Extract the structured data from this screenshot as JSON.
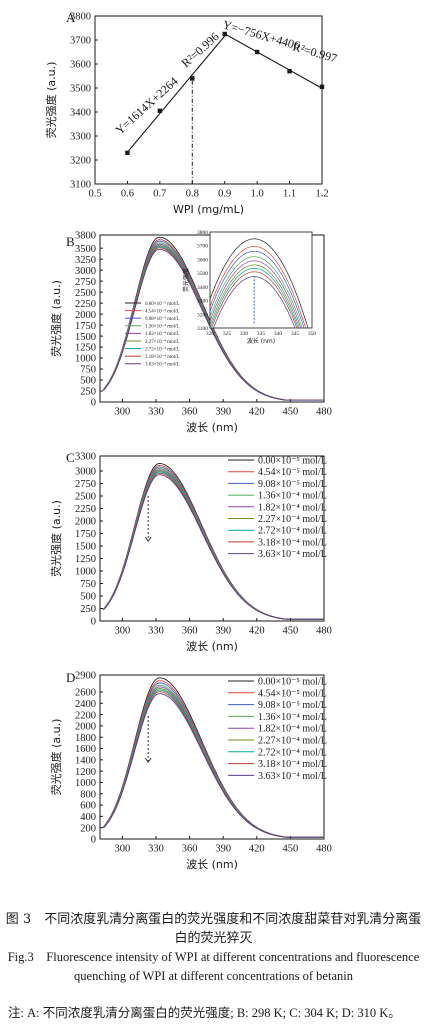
{
  "chart_data": [
    {
      "panel": "A",
      "type": "scatter",
      "xlabel": "WPI (mg/mL)",
      "ylabel": "荧光强度 (a.u.)",
      "xlim": [
        0.5,
        1.2
      ],
      "ylim": [
        3100,
        3800
      ],
      "xticks": [
        0.5,
        0.6,
        0.7,
        0.8,
        0.9,
        1.0,
        1.1,
        1.2
      ],
      "yticks": [
        3100,
        3200,
        3300,
        3400,
        3500,
        3600,
        3700,
        3800
      ],
      "x": [
        0.6,
        0.7,
        0.8,
        0.9,
        1.0,
        1.1,
        1.2
      ],
      "y": [
        3230,
        3405,
        3540,
        3725,
        3650,
        3570,
        3505
      ],
      "fits": [
        {
          "equation": "Y=1614X+2264",
          "r2_label": "R²=0.996",
          "slope": 1614,
          "intercept": 2264,
          "x_range": [
            0.6,
            0.9
          ]
        },
        {
          "equation": "Y=−756X+4406",
          "r2_label": "R²=0.997",
          "slope": -756,
          "intercept": 4406,
          "x_range": [
            0.9,
            1.2
          ]
        }
      ],
      "vline_x": 0.8
    },
    {
      "panel": "B",
      "type": "line",
      "xlabel": "波长 (nm)",
      "ylabel": "荧光强度 (a.u.)",
      "xlim": [
        280,
        480
      ],
      "ylim": [
        0,
        3800
      ],
      "xticks": [
        300,
        330,
        360,
        390,
        420,
        450,
        480
      ],
      "yticks": [
        0,
        250,
        500,
        750,
        1000,
        1250,
        1500,
        1750,
        2000,
        2250,
        2500,
        2750,
        3000,
        3250,
        3500,
        3800
      ],
      "peak_x": 333,
      "peaks": [
        3750,
        3695,
        3660,
        3620,
        3590,
        3560,
        3535,
        3510,
        3475
      ],
      "series": [
        {
          "name": "0.00×10⁻⁵ mol/L",
          "color": "#222222"
        },
        {
          "name": "4.54×10⁻⁵ mol/L",
          "color": "#e0453c"
        },
        {
          "name": "9.08×10⁻⁵ mol/L",
          "color": "#3a5fcd"
        },
        {
          "name": "1.36×10⁻⁴ mol/L",
          "color": "#4caf50"
        },
        {
          "name": "1.82×10⁻⁴ mol/L",
          "color": "#8e44ad"
        },
        {
          "name": "2.27×10⁻⁴ mol/L",
          "color": "#6b8e23"
        },
        {
          "name": "2.72×10⁻⁴ mol/L",
          "color": "#00a6a6"
        },
        {
          "name": "3.18×10⁻⁴ mol/L",
          "color": "#c0392b"
        },
        {
          "name": "3.63×10⁻⁴ mol/L",
          "color": "#5a3d8a"
        }
      ],
      "inset": {
        "xlabel": "波长 (nm)",
        "ylabel": "荧光强度",
        "xlim": [
          320,
          350
        ],
        "ylim": [
          3100,
          3800
        ],
        "xticks": [
          320,
          325,
          330,
          335,
          340,
          345,
          350
        ],
        "yticks": [
          3100,
          3200,
          3300,
          3400,
          3500,
          3600,
          3700,
          3800
        ]
      }
    },
    {
      "panel": "C",
      "type": "line",
      "xlabel": "波长 (nm)",
      "ylabel": "荧光强度 (a.u.)",
      "xlim": [
        280,
        480
      ],
      "ylim": [
        0,
        3300
      ],
      "xticks": [
        300,
        330,
        360,
        390,
        420,
        450,
        480
      ],
      "yticks": [
        0,
        250,
        500,
        750,
        1000,
        1250,
        1500,
        1750,
        2000,
        2250,
        2500,
        2750,
        3000,
        3300
      ],
      "peak_x": 333,
      "peaks": [
        3150,
        3110,
        3080,
        3050,
        3025,
        3000,
        2980,
        2955,
        2925
      ],
      "series": [
        {
          "name": "0.00×10⁻⁵ mol/L",
          "color": "#222222"
        },
        {
          "name": "4.54×10⁻⁵ mol/L",
          "color": "#e0453c"
        },
        {
          "name": "9.08×10⁻⁵ mol/L",
          "color": "#3a5fcd"
        },
        {
          "name": "1.36×10⁻⁴ mol/L",
          "color": "#4caf50"
        },
        {
          "name": "1.82×10⁻⁴ mol/L",
          "color": "#8e44ad"
        },
        {
          "name": "2.27×10⁻⁴ mol/L",
          "color": "#6b8e23"
        },
        {
          "name": "2.72×10⁻⁴ mol/L",
          "color": "#00a6a6"
        },
        {
          "name": "3.18×10⁻⁴ mol/L",
          "color": "#c0392b"
        },
        {
          "name": "3.63×10⁻⁴ mol/L",
          "color": "#5a3d8a"
        }
      ]
    },
    {
      "panel": "D",
      "type": "line",
      "xlabel": "波长 (nm)",
      "ylabel": "荧光强度 (a.u.)",
      "xlim": [
        280,
        480
      ],
      "ylim": [
        0,
        2900
      ],
      "xticks": [
        300,
        330,
        360,
        390,
        420,
        450,
        480
      ],
      "yticks": [
        0,
        200,
        400,
        600,
        800,
        1000,
        1200,
        1400,
        1600,
        1800,
        2000,
        2200,
        2400,
        2600,
        2900
      ],
      "peak_x": 333,
      "peaks": [
        2850,
        2800,
        2760,
        2720,
        2690,
        2660,
        2635,
        2605,
        2570
      ],
      "series": [
        {
          "name": "0.00×10⁻⁵ mol/L",
          "color": "#222222"
        },
        {
          "name": "4.54×10⁻⁵ mol/L",
          "color": "#e0453c"
        },
        {
          "name": "9.08×10⁻⁵ mol/L",
          "color": "#3a5fcd"
        },
        {
          "name": "1.36×10⁻⁴ mol/L",
          "color": "#4caf50"
        },
        {
          "name": "1.82×10⁻⁴ mol/L",
          "color": "#8e44ad"
        },
        {
          "name": "2.27×10⁻⁴ mol/L",
          "color": "#6b8e23"
        },
        {
          "name": "2.72×10⁻⁴ mol/L",
          "color": "#00a6a6"
        },
        {
          "name": "3.18×10⁻⁴ mol/L",
          "color": "#c0392b"
        },
        {
          "name": "3.63×10⁻⁴ mol/L",
          "color": "#5a3d8a"
        }
      ]
    }
  ],
  "caption": {
    "zh": "图 3　不同浓度乳清分离蛋白的荧光强度和不同浓度甜菜苷对乳清分离蛋白的荧光猝灭",
    "en": "Fig.3　Fluorescence intensity of WPI at different concentrations and fluorescence quenching of WPI at different concentrations of betanin",
    "note": "注: A: 不同浓度乳清分离蛋白的荧光强度; B: 298 K; C: 304 K; D: 310 K。"
  }
}
